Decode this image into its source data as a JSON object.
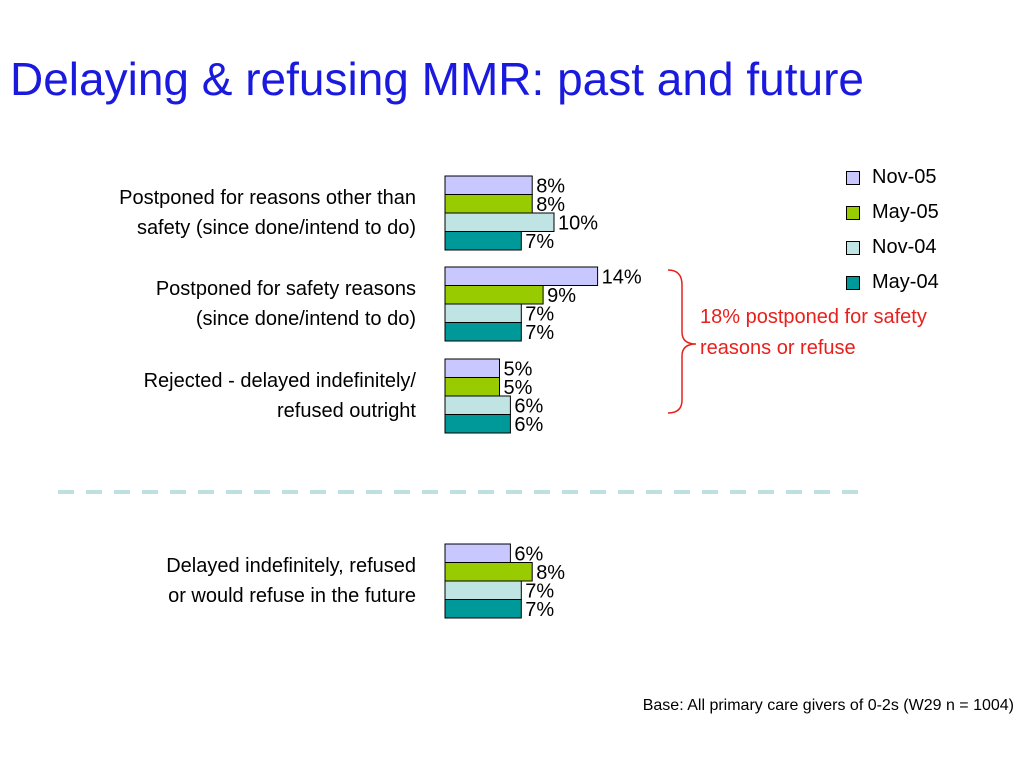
{
  "slide": {
    "title": "Delaying & refusing MMR: past and future",
    "annotation": "18% postponed for safety reasons or refuse",
    "footnote": "Base:  All primary care givers of 0-2s (W29  n = 1004)"
  },
  "colors": {
    "title": "#1a1adf",
    "annotation": "#e8201c",
    "divider": "#bfe0e0",
    "bracket": "#e8201c"
  },
  "chart_data": {
    "type": "bar",
    "orientation": "horizontal",
    "categories": [
      "Postponed for reasons other than safety (since done/intend to do)",
      "Postponed for safety reasons (since done/intend to do)",
      "Rejected - delayed indefinitely/ refused outright",
      "Delayed indefinitely, refused or would refuse in the future"
    ],
    "category_lines": [
      [
        "Postponed for reasons other than",
        "safety (since done/intend to do)"
      ],
      [
        "Postponed for safety reasons",
        "(since done/intend to do)"
      ],
      [
        "Rejected - delayed indefinitely/",
        "refused outright"
      ],
      [
        "Delayed indefinitely, refused",
        "or would refuse in the future"
      ]
    ],
    "series": [
      {
        "name": "Nov-05",
        "color": "#c8c8ff",
        "values": [
          8,
          14,
          5,
          6
        ]
      },
      {
        "name": "May-05",
        "color": "#99cc00",
        "values": [
          8,
          9,
          5,
          8
        ]
      },
      {
        "name": "Nov-04",
        "color": "#c0e4e4",
        "values": [
          10,
          7,
          6,
          7
        ]
      },
      {
        "name": "May-04",
        "color": "#009999",
        "values": [
          7,
          7,
          6,
          7
        ]
      }
    ],
    "value_suffix": "%",
    "xlim": [
      0,
      14
    ],
    "grid": false,
    "legend_position": "top-right"
  }
}
